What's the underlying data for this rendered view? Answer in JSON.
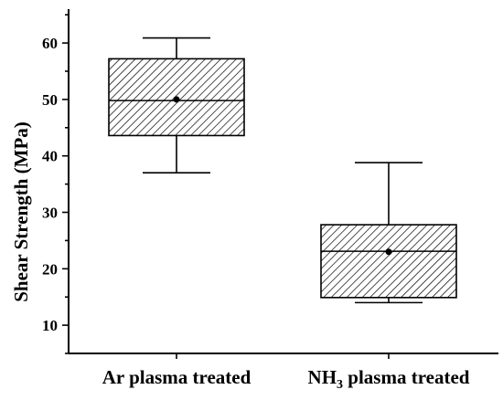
{
  "chart_data": {
    "type": "box",
    "categories": [
      "Ar plasma treated",
      "NH3 plasma treated"
    ],
    "category_labels": [
      {
        "main": "Ar plasma treated",
        "sub": "",
        "rest": ""
      },
      {
        "main": "NH",
        "sub": "3",
        "rest": " plasma treated"
      }
    ],
    "series": [
      {
        "min": 37,
        "q1": 43.6,
        "median": 49.8,
        "q3": 57.2,
        "max": 60.9,
        "mean": 50
      },
      {
        "min": 14,
        "q1": 14.9,
        "median": 23.1,
        "q3": 27.8,
        "max": 38.8,
        "mean": 23
      }
    ],
    "ylabel": "Shear Strength (MPa)",
    "ylim": [
      5,
      66
    ],
    "yticks": [
      10,
      20,
      30,
      40,
      50,
      60
    ],
    "ytick_labels": [
      "10",
      "20",
      "30",
      "40",
      "50",
      "60"
    ],
    "grid": false
  }
}
